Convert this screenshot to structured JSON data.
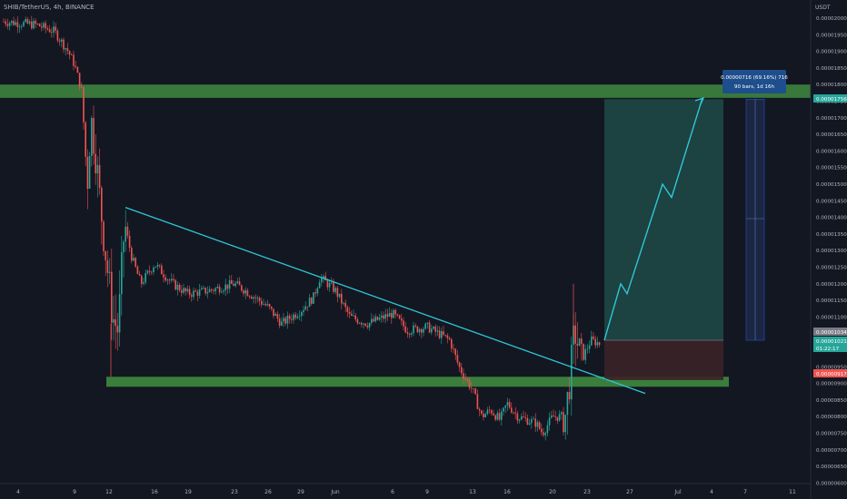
{
  "header": {
    "title": "SHIB/TetherUS, 4h, BINANCE",
    "unit": "USDT"
  },
  "colors": {
    "background": "#131722",
    "bull_candle": "#26a69a",
    "bear_candle": "#ef5350",
    "trendline": "#2fc7d6",
    "zone": "#3f8a3f",
    "target_box": "#1f4a47",
    "stop_box": "#3b2227",
    "axis_text": "#b2b5be"
  },
  "chart_data": {
    "type": "candlestick",
    "y_axis": {
      "min": 6e-06,
      "max": 2e-05,
      "ticks": [
        "0.00002000",
        "0.00001950",
        "0.00001900",
        "0.00001850",
        "0.00001800",
        "0.00001750",
        "0.00001700",
        "0.00001650",
        "0.00001600",
        "0.00001550",
        "0.00001500",
        "0.00001450",
        "0.00001400",
        "0.00001350",
        "0.00001300",
        "0.00001250",
        "0.00001200",
        "0.00001150",
        "0.00001100",
        "0.00001050",
        "0.00001000",
        "0.00000950",
        "0.00000900",
        "0.00000850",
        "0.00000800",
        "0.00000750",
        "0.00000700",
        "0.00000650",
        "0.00000600"
      ]
    },
    "x_axis": {
      "ticks": [
        "4",
        "9",
        "12",
        "16",
        "19",
        "23",
        "26",
        "29",
        "Jun",
        "6",
        "9",
        "13",
        "16",
        "20",
        "23",
        "27",
        "Jul",
        "4",
        "7",
        "11"
      ]
    },
    "price_path": [
      {
        "x": "4",
        "close": 1.99e-05
      },
      {
        "x": "9",
        "close": 1.94e-05
      },
      {
        "x": "10",
        "close": 1.72e-05
      },
      {
        "x": "11",
        "close": 1.45e-05
      },
      {
        "x": "12",
        "close": 1.08e-05
      },
      {
        "x": "13",
        "close": 1.38e-05
      },
      {
        "x": "16",
        "close": 1.21e-05
      },
      {
        "x": "19",
        "close": 1.17e-05
      },
      {
        "x": "23",
        "close": 1.19e-05
      },
      {
        "x": "26",
        "close": 1.08e-05
      },
      {
        "x": "29",
        "close": 1.12e-05
      },
      {
        "x": "31",
        "close": 1.21e-05
      },
      {
        "x": "Jun",
        "close": 1.12e-05
      },
      {
        "x": "6",
        "close": 1.1e-05
      },
      {
        "x": "9",
        "close": 1.03e-05
      },
      {
        "x": "13",
        "close": 8.5e-06
      },
      {
        "x": "16",
        "close": 7.8e-06
      },
      {
        "x": "20",
        "close": 7.9e-06
      },
      {
        "x": "21",
        "close": 9.1e-06
      },
      {
        "x": "22",
        "close": 1.06e-05
      },
      {
        "x": "23",
        "close": 1.03e-05
      }
    ],
    "annotations": {
      "resistance_zone": [
        1.76e-05,
        1.8e-05
      ],
      "support_zone": [
        8.9e-06,
        9.2e-06
      ],
      "trendline": [
        {
          "x": "13",
          "y": 1.43e-05
        },
        {
          "x": "27",
          "y": 8.7e-06
        }
      ],
      "projection_path": [
        {
          "x": "24",
          "y": 1.03e-05
        },
        {
          "x": "25",
          "y": 1.2e-05
        },
        {
          "x": "25.5",
          "y": 1.17e-05
        },
        {
          "x": "27",
          "y": 1.5e-05
        },
        {
          "x": "28",
          "y": 1.46e-05
        },
        {
          "x": "30",
          "y": 1.76e-05
        }
      ],
      "long_position": {
        "entry": 1.03e-05,
        "target": 1.756e-05,
        "stop": 9.1e-06
      }
    },
    "price_labels": [
      {
        "text": "0.00001756",
        "value": 1.756e-05,
        "color": "#26a69a"
      },
      {
        "text": "0.00001034",
        "value": 1.034e-05,
        "color": "#787b86"
      },
      {
        "text": "0.00001021",
        "value": 1.021e-05,
        "color": "#26a69a"
      },
      {
        "text": "01:22:17",
        "value": 1.008e-05,
        "color": "#26a69a"
      },
      {
        "text": "0.00000917",
        "value": 9.17e-06,
        "color": "#ef5350"
      }
    ],
    "measure_label": {
      "line1": "0.00000716 (69.16%) 716",
      "line2": "90 bars, 1d 16h"
    }
  }
}
